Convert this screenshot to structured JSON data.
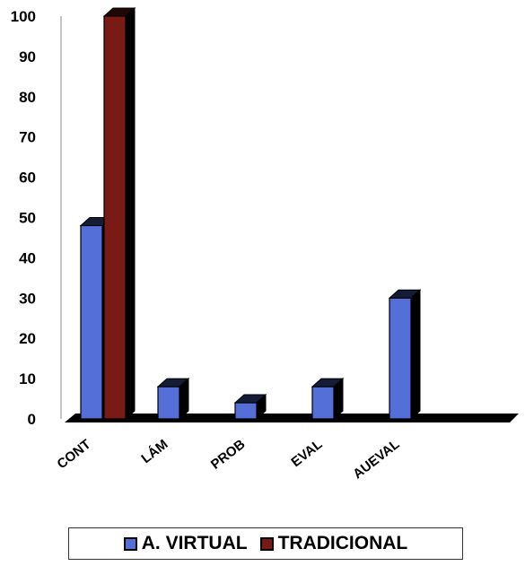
{
  "chart_data": {
    "type": "bar",
    "categories": [
      "CONT",
      "LÁM",
      "PROB",
      "EVAL",
      "AUEVAL"
    ],
    "series": [
      {
        "name": "A. VIRTUAL",
        "color": "#5470d8",
        "values": [
          48,
          8,
          4,
          8,
          30
        ]
      },
      {
        "name": "TRADICIONAL",
        "color": "#7a1a14",
        "values": [
          100,
          null,
          null,
          null,
          null
        ]
      }
    ],
    "yticks": [
      0,
      10,
      20,
      30,
      40,
      50,
      60,
      70,
      80,
      90,
      100
    ],
    "ylim": [
      0,
      100
    ],
    "grid": false,
    "style": "3d",
    "legend_position": "bottom"
  },
  "legend": {
    "items": [
      {
        "label": "A. VIRTUAL",
        "color": "#5470d8"
      },
      {
        "label": "TRADICIONAL",
        "color": "#7a1a14"
      }
    ]
  }
}
